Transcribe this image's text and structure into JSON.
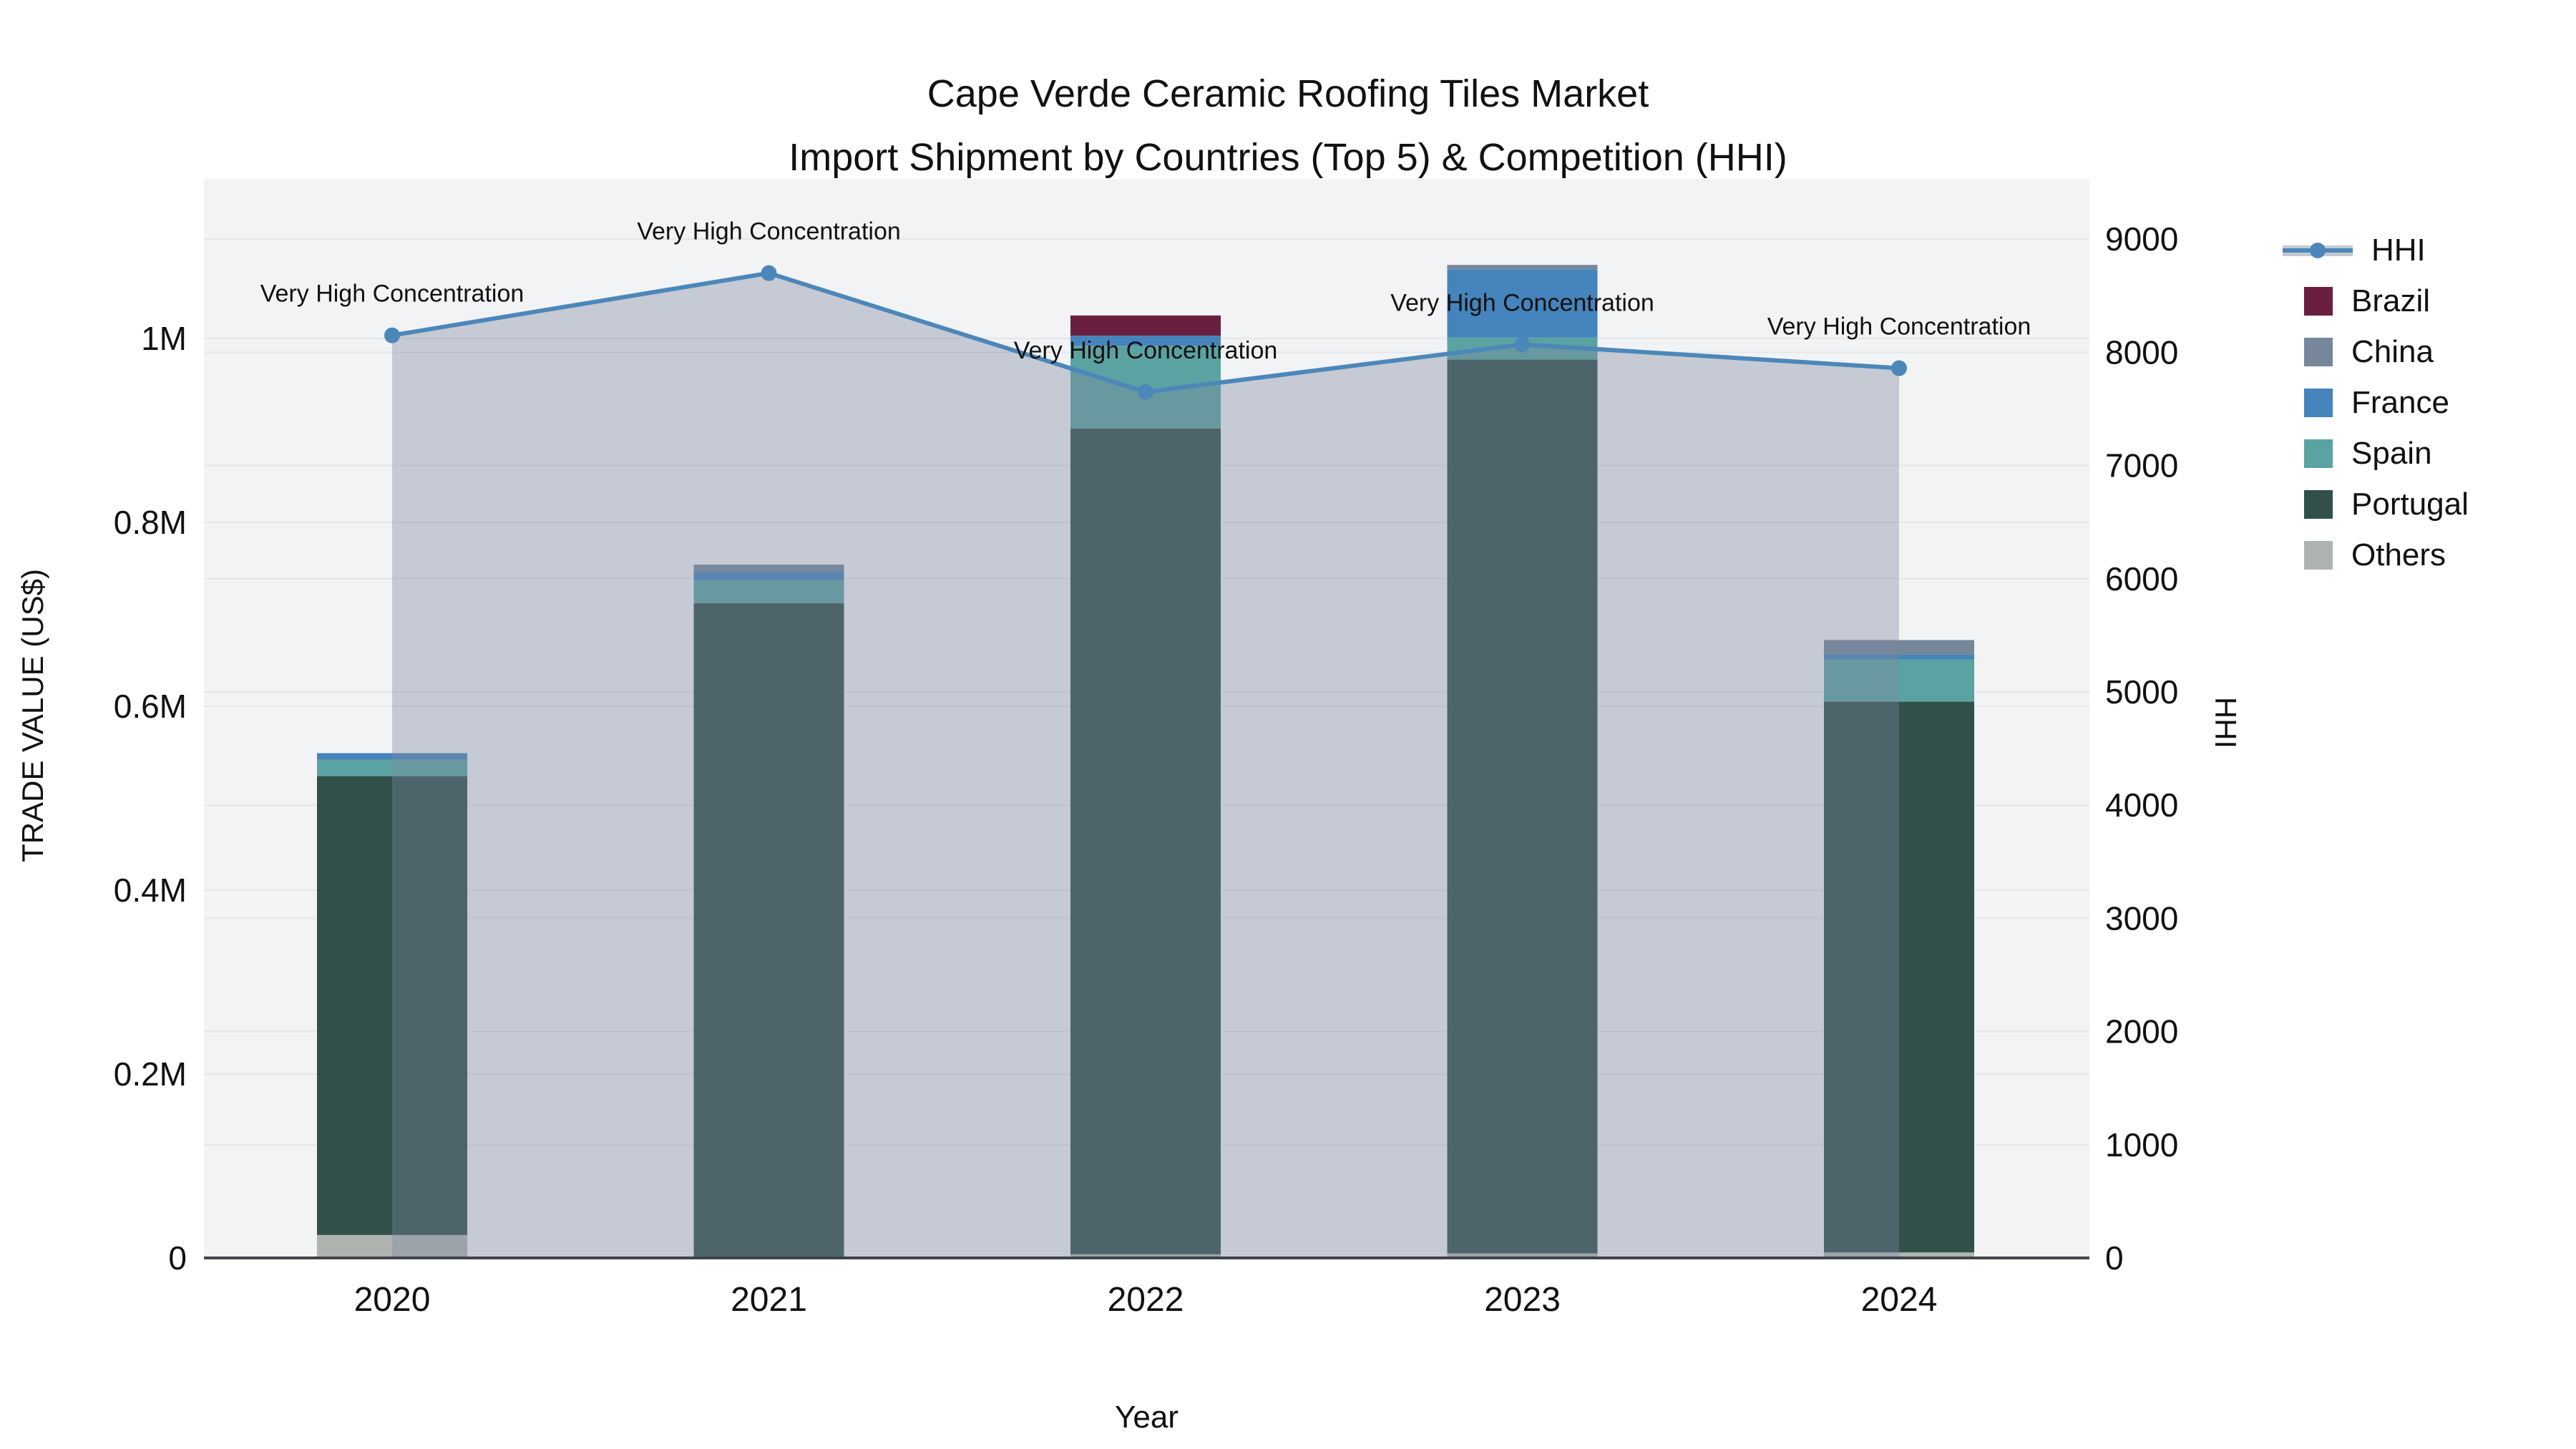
{
  "title": {
    "line1": "Cape Verde Ceramic Roofing Tiles Market",
    "line2": "Import Shipment by Countries (Top 5) & Competition (HHI)"
  },
  "axes": {
    "x": {
      "label": "Year",
      "ticks": [
        "2020",
        "2021",
        "2022",
        "2023",
        "2024"
      ]
    },
    "y_left": {
      "label": "TRADE VALUE (US$)",
      "ticks": [
        "0",
        "0.2M",
        "0.4M",
        "0.6M",
        "0.8M",
        "1M"
      ],
      "tick_values": [
        0,
        200000,
        400000,
        600000,
        800000,
        1000000
      ]
    },
    "y_right": {
      "label": "HHI",
      "ticks": [
        "0",
        "1000",
        "2000",
        "3000",
        "4000",
        "5000",
        "6000",
        "7000",
        "8000",
        "9000"
      ],
      "tick_values": [
        0,
        1000,
        2000,
        3000,
        4000,
        5000,
        6000,
        7000,
        8000,
        9000
      ]
    }
  },
  "legend": [
    {
      "key": "hhi",
      "label": "HHI",
      "type": "line"
    },
    {
      "key": "brazil",
      "label": "Brazil",
      "type": "swatch"
    },
    {
      "key": "china",
      "label": "China",
      "type": "swatch"
    },
    {
      "key": "france",
      "label": "France",
      "type": "swatch"
    },
    {
      "key": "spain",
      "label": "Spain",
      "type": "swatch"
    },
    {
      "key": "portugal",
      "label": "Portugal",
      "type": "swatch"
    },
    {
      "key": "others",
      "label": "Others",
      "type": "swatch"
    }
  ],
  "chart_data": {
    "type": "combo: stacked-bar (trade value, left axis) + line (HHI, right axis)",
    "categories": [
      "2020",
      "2021",
      "2022",
      "2023",
      "2024"
    ],
    "stacked_series_bottom_to_top": [
      {
        "key": "others",
        "name": "Others",
        "values": [
          25000,
          0,
          4000,
          5000,
          6000
        ]
      },
      {
        "key": "portugal",
        "name": "Portugal",
        "values": [
          499000,
          712000,
          898000,
          972000,
          599000
        ]
      },
      {
        "key": "spain",
        "name": "Spain",
        "values": [
          18000,
          25000,
          90000,
          24000,
          46000
        ]
      },
      {
        "key": "france",
        "name": "France",
        "values": [
          7000,
          9000,
          11000,
          74000,
          5000
        ]
      },
      {
        "key": "china",
        "name": "China",
        "values": [
          0,
          8000,
          0,
          5000,
          16000
        ]
      },
      {
        "key": "brazil",
        "name": "Brazil",
        "values": [
          0,
          0,
          22000,
          0,
          0
        ]
      }
    ],
    "bar_totals": [
      549000,
      754000,
      1025000,
      1080000,
      672000
    ],
    "line_series": {
      "name": "HHI",
      "axis": "right",
      "values": [
        8150,
        8700,
        7650,
        8070,
        7860
      ],
      "area_fill_under_line": true
    },
    "annotations": [
      {
        "text": "Very High Concentration"
      },
      {
        "text": "Very High Concentration"
      },
      {
        "text": "Very High Concentration"
      },
      {
        "text": "Very High Concentration"
      },
      {
        "text": "Very High Concentration"
      }
    ],
    "colors": {
      "brazil": "#6B1F40",
      "china": "#76879B",
      "france": "#4584BC",
      "spain": "#5BA3A2",
      "portugal": "#305049",
      "others": "#AFB3B0",
      "hhi_line": "#4C87BA",
      "hhi_area_fill": "rgba(125,137,161,0.38)",
      "hhi_band_composite": "#C5CAD4"
    },
    "ylim_left": [
      0,
      1170000
    ],
    "ylim_right": [
      0,
      9530
    ],
    "grid": true,
    "legend_position": "right"
  }
}
